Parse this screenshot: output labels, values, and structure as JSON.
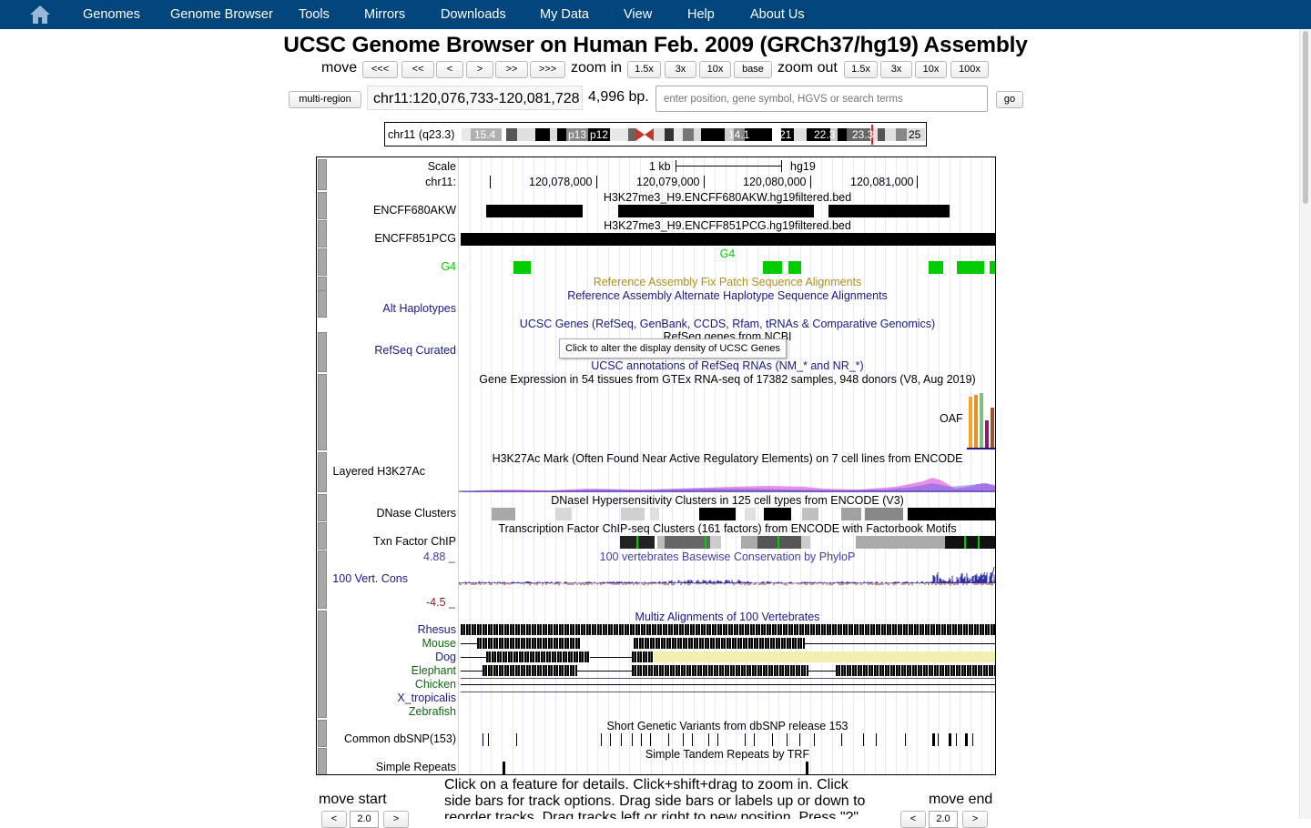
{
  "nav": {
    "items": [
      "Genomes",
      "Genome Browser",
      "Tools",
      "Mirrors",
      "Downloads",
      "My Data",
      "View",
      "Help",
      "About Us"
    ]
  },
  "title": "UCSC Genome Browser on Human Feb. 2009 (GRCh37/hg19) Assembly",
  "controls": {
    "move_label": "move",
    "move_buttons": [
      "<<<",
      "<<",
      "<",
      ">",
      ">>",
      ">>>"
    ],
    "zoom_in_label": "zoom in",
    "zoom_in_buttons": [
      "1.5x",
      "3x",
      "10x",
      "base"
    ],
    "zoom_out_label": "zoom out",
    "zoom_out_buttons": [
      "1.5x",
      "3x",
      "10x",
      "100x"
    ],
    "multi_region": "multi-region",
    "position": "chr11:120,076,733-120,081,728",
    "size": "4,996 bp.",
    "search_placeholder": "enter position, gene symbol, HGVS or search terms",
    "go": "go"
  },
  "ideogram": {
    "chrom_label": "chr11 (q23.3)",
    "band_labels": [
      "15.4",
      "p13",
      "p12",
      "14.1",
      "21",
      "22.3",
      "23.3",
      "25"
    ]
  },
  "ruler": {
    "scale_label": "Scale",
    "chrom_label": "chr11:",
    "scale_text": "1 kb",
    "assembly": "hg19",
    "ticks": [
      "120,078,000",
      "120,079,000",
      "120,080,000",
      "120,081,000"
    ]
  },
  "tracks": {
    "encff680_title": "H3K27me3_H9.ENCFF680AKW.hg19filtered.bed",
    "encff680_label": "ENCFF680AKW",
    "encff851_title": "H3K27me3_H9.ENCFF851PCG.hg19filtered.bed",
    "encff851_label": "ENCFF851PCG",
    "g4_title": "G4",
    "g4_label": "G4",
    "fix_patch_title": "Reference Assembly Fix Patch Sequence Alignments",
    "alt_hap_title": "Reference Assembly Alternate Haplotype Sequence Alignments",
    "alt_hap_label": "Alt Haplotypes",
    "ucsc_genes_title": "UCSC Genes (RefSeq, GenBank, CCDS, Rfam, tRNAs & Comparative Genomics)",
    "refseq_genes_title": "RefSeq genes from NCBI",
    "refseq_label": "RefSeq Curated",
    "ucsc_refseq_title": "UCSC annotations of RefSeq RNAs (NM_* and NR_*)",
    "gtex_title": "Gene Expression in 54 tissues from GTEx RNA-seq of 17382 samples, 948 donors (V8, Aug 2019)",
    "gtex_gene": "OAF",
    "h3k27ac_title": "H3K27Ac Mark (Often Found Near Active Regulatory Elements) on 7 cell lines from ENCODE",
    "h3k27ac_label": "Layered H3K27Ac",
    "dnase_title": "DNaseI Hypersensitivity Clusters in 125 cell types from ENCODE (V3)",
    "dnase_label": "DNase Clusters",
    "txn_title": "Transcription Factor ChIP-seq Clusters (161 factors) from ENCODE with Factorbook Motifs",
    "txn_label": "Txn Factor ChIP",
    "cons_max": "4.88 _",
    "cons_title": "100 vertebrates Basewise Conservation by PhyloP",
    "cons_label": "100 Vert. Cons",
    "cons_min": "-4.5 _",
    "multiz_title": "Multiz Alignments of 100 Vertebrates",
    "species": [
      "Rhesus",
      "Mouse",
      "Dog",
      "Elephant",
      "Chicken",
      "X_tropicalis",
      "Zebrafish"
    ],
    "dbsnp_title": "Short Genetic Variants from dbSNP release 153",
    "dbsnp_label": "Common dbSNP(153)",
    "repeats_title": "Simple Tandem Repeats by TRF",
    "repeats_label": "Simple Repeats"
  },
  "tooltip": "Click to alter the display density of UCSC Genes",
  "bottom": {
    "move_start": "move start",
    "move_end": "move end",
    "amount_value": "2.0",
    "left_arrow": "<",
    "right_arrow": ">",
    "help_text": "Click on a feature for details. Click+shift+drag to zoom in. Click side bars for track options. Drag side bars or labels up or down to reorder tracks. Drag tracks left or right to new position. Press \"?\""
  },
  "colors": {
    "nav_bg": "#00457c",
    "g4": "#00cc00",
    "fix_patch": "#b0901a",
    "navy": "#1a1a80",
    "species_green": "#116611",
    "cons_blue": "#4040a0",
    "cons_red": "#8b2020",
    "gtex_bar_colors": [
      "#f5a623",
      "#e69028",
      "#7fbf7f",
      "#8b1a6b",
      "#a0522d"
    ]
  }
}
